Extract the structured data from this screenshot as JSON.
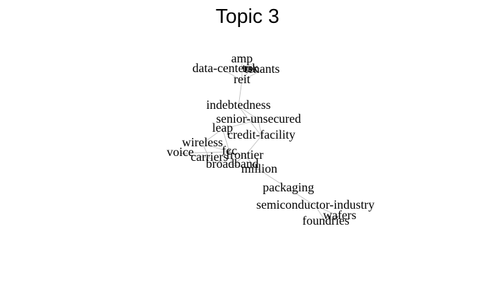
{
  "title": "Topic 3",
  "chart_data": {
    "type": "network",
    "title": "Topic 3",
    "nodes": [
      "amp",
      "tok",
      "data-centers",
      "tenants",
      "reit",
      "indebtedness",
      "senior-unsecured",
      "leap",
      "credit-facility",
      "wireless",
      "voice",
      "fcc",
      "frontier",
      "carriers",
      "broadband",
      "million",
      "packaging",
      "semiconductor-industry",
      "wafers",
      "foundries"
    ],
    "edges": [
      [
        "amp",
        "reit"
      ],
      [
        "amp",
        "tenants"
      ],
      [
        "tok",
        "reit"
      ],
      [
        "data-centers",
        "reit"
      ],
      [
        "tenants",
        "reit"
      ],
      [
        "reit",
        "indebtedness"
      ],
      [
        "indebtedness",
        "senior-unsecured"
      ],
      [
        "indebtedness",
        "credit-facility"
      ],
      [
        "senior-unsecured",
        "leap"
      ],
      [
        "senior-unsecured",
        "credit-facility"
      ],
      [
        "credit-facility",
        "frontier"
      ],
      [
        "leap",
        "wireless"
      ],
      [
        "leap",
        "fcc"
      ],
      [
        "wireless",
        "fcc"
      ],
      [
        "wireless",
        "carriers"
      ],
      [
        "voice",
        "carriers"
      ],
      [
        "voice",
        "fcc"
      ],
      [
        "fcc",
        "frontier"
      ],
      [
        "fcc",
        "broadband"
      ],
      [
        "carriers",
        "broadband"
      ],
      [
        "frontier",
        "broadband"
      ],
      [
        "broadband",
        "million"
      ],
      [
        "frontier",
        "million"
      ],
      [
        "million",
        "packaging"
      ],
      [
        "packaging",
        "semiconductor-industry"
      ],
      [
        "semiconductor-industry",
        "wafers"
      ],
      [
        "semiconductor-industry",
        "foundries"
      ],
      [
        "wafers",
        "foundries"
      ]
    ]
  }
}
